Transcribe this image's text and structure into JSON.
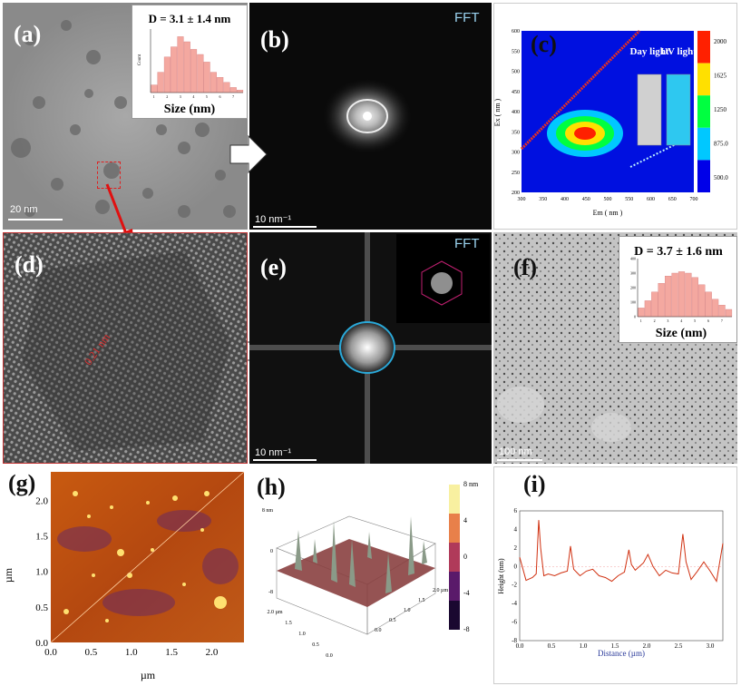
{
  "panels": {
    "a": {
      "label": "(a)",
      "scale": "20 nm",
      "inset_title": "D = 3.1 ± 1.4 nm",
      "inset_xlabel": "Size (nm)",
      "inset_ylabel": "Count"
    },
    "b": {
      "label": "(b)",
      "fft": "FFT",
      "scale": "10 nm⁻¹"
    },
    "c": {
      "label": "(c)",
      "xlabel": "Em ( nm )",
      "ylabel": "Ex ( nm )",
      "day_light": "Day light",
      "uv_light": "UV light",
      "colorbar": [
        "2000",
        "1625",
        "1250",
        "875.0",
        "500.0"
      ],
      "colors": [
        "#0000e8",
        "#00c8ff",
        "#00ff40",
        "#ffe000",
        "#ff2000"
      ]
    },
    "d": {
      "label": "(d)",
      "lattice": "0.21 nm"
    },
    "e": {
      "label": "(e)",
      "fft": "FFT",
      "scale": "10 nm⁻¹"
    },
    "f": {
      "label": "(f)",
      "scale": "100 nm",
      "inset_title": "D = 3.7 ± 1.6 nm",
      "inset_xlabel": "Size (nm)"
    },
    "g": {
      "label": "(g)",
      "ylabel": "µm",
      "xlabel": "µm"
    },
    "h": {
      "label": "(h)",
      "unit": "8 nm"
    },
    "i": {
      "label": "(i)",
      "xlabel": "Distance (µm)",
      "ylabel": "Height (nm)"
    }
  },
  "chart_data": [
    {
      "type": "bar",
      "title": "D = 3.1 ± 1.4 nm",
      "xlabel": "Size (nm)",
      "ylabel": "Count",
      "categories": [
        "1",
        "2",
        "3",
        "4",
        "5",
        "6",
        "7"
      ],
      "x": [
        1.0,
        1.5,
        2.0,
        2.5,
        3.0,
        3.5,
        4.0,
        4.5,
        5.0,
        5.5,
        6.0,
        6.5,
        7.0,
        7.5
      ],
      "values": [
        3,
        8,
        14,
        18,
        22,
        20,
        17,
        15,
        12,
        8,
        6,
        4,
        2,
        1
      ],
      "ylim": [
        0,
        25
      ]
    },
    {
      "type": "bar",
      "title": "D = 3.7 ± 1.6 nm",
      "xlabel": "Size (nm)",
      "ylabel": "",
      "categories": [
        "1",
        "2",
        "3",
        "4",
        "5",
        "6",
        "7"
      ],
      "y_ticks": [
        "0",
        "100",
        "200",
        "300",
        "400"
      ],
      "x": [
        1.0,
        1.5,
        2.0,
        2.5,
        3.0,
        3.5,
        4.0,
        4.5,
        5.0,
        5.5,
        6.0,
        6.5,
        7.0,
        7.5
      ],
      "values": [
        60,
        110,
        170,
        230,
        280,
        300,
        310,
        300,
        270,
        220,
        170,
        120,
        80,
        50
      ],
      "ylim": [
        0,
        400
      ]
    },
    {
      "type": "heatmap",
      "title": "",
      "xlabel": "Em ( nm )",
      "ylabel": "Ex ( nm )",
      "x_ticks": [
        "300",
        "350",
        "400",
        "450",
        "500",
        "550",
        "600",
        "650",
        "700"
      ],
      "y_ticks": [
        "200",
        "250",
        "300",
        "350",
        "400",
        "450",
        "500",
        "550",
        "600"
      ],
      "xlim": [
        300,
        700
      ],
      "ylim": [
        200,
        600
      ],
      "peak": {
        "em": 455,
        "ex": 340
      },
      "colorbar_ticks": [
        "500.0",
        "875.0",
        "1250",
        "1625",
        "2000"
      ]
    },
    {
      "type": "line",
      "title": "",
      "xlabel": "Distance (µm)",
      "ylabel": "Height (nm)",
      "x_ticks": [
        "0.0",
        "0.5",
        "1.0",
        "1.5",
        "2.0",
        "2.5",
        "3.0"
      ],
      "y_ticks": [
        "-8",
        "-6",
        "-4",
        "-2",
        "0",
        "2",
        "4",
        "6"
      ],
      "xlim": [
        0,
        3.2
      ],
      "ylim": [
        -8,
        6
      ],
      "x": [
        0.0,
        0.1,
        0.2,
        0.26,
        0.3,
        0.33,
        0.38,
        0.45,
        0.55,
        0.65,
        0.75,
        0.8,
        0.85,
        0.95,
        1.05,
        1.15,
        1.25,
        1.35,
        1.45,
        1.55,
        1.65,
        1.72,
        1.76,
        1.82,
        1.95,
        2.02,
        2.1,
        2.2,
        2.3,
        2.4,
        2.5,
        2.57,
        2.62,
        2.7,
        2.8,
        2.9,
        3.0,
        3.1,
        3.2
      ],
      "values": [
        1.0,
        -1.5,
        -1.2,
        -0.8,
        5.0,
        2.0,
        -1.0,
        -0.8,
        -1.0,
        -0.7,
        -0.5,
        2.2,
        -0.3,
        -1.0,
        -0.5,
        -0.3,
        -1.0,
        -1.2,
        -1.6,
        -1.0,
        -0.6,
        1.8,
        0.2,
        -0.4,
        0.4,
        1.3,
        0.0,
        -1.0,
        -0.4,
        -0.7,
        -0.8,
        3.5,
        0.5,
        -1.4,
        -0.5,
        0.5,
        -0.5,
        -1.6,
        2.5
      ]
    },
    {
      "type": "heatmap",
      "title": "",
      "xlabel": "µm",
      "ylabel": "µm",
      "x_ticks": [
        "0.0",
        "0.5",
        "1.0",
        "1.5",
        "2.0"
      ],
      "y_ticks": [
        "0.0",
        "0.5",
        "1.0",
        "1.5",
        "2.0"
      ],
      "xlim": [
        0,
        2.4
      ],
      "ylim": [
        0,
        2.4
      ]
    },
    {
      "type": "heatmap",
      "title": "",
      "xlabel": "",
      "ylabel": "",
      "colorbar_ticks": [
        "-8",
        "-4",
        "0",
        "4",
        "8 nm"
      ],
      "axis_ticks_x": [
        "0.0",
        "0.5",
        "1.0",
        "1.5",
        "2.0 µm"
      ],
      "axis_ticks_y": [
        "0.0",
        "0.5",
        "1.0",
        "1.5",
        "2.0 µm"
      ],
      "axis_ticks_z": [
        "-8",
        "0",
        "8 nm"
      ],
      "z_range": [
        -8,
        8
      ]
    }
  ]
}
